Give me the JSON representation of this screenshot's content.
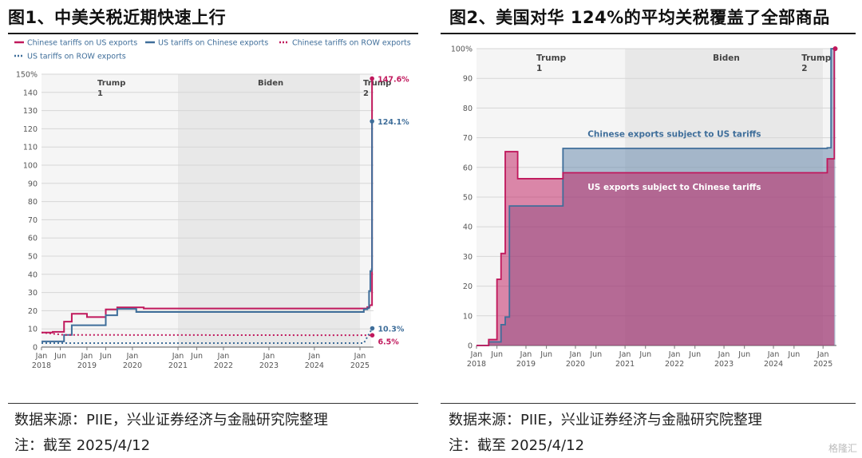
{
  "left": {
    "title": "图1、中美关税近期快速上行",
    "source": "数据来源：PIIE，兴业证券经济与金融研究院整理",
    "note": "注：截至 2025/4/12"
  },
  "right": {
    "title": "图2、美国对华 124%的平均关税覆盖了全部商品",
    "source": "数据来源：PIIE，兴业证券经济与金融研究院整理",
    "note": "注：截至 2025/4/12"
  },
  "watermark": "格隆汇",
  "chart_data": [
    {
      "type": "line",
      "x_unit": "date",
      "ylim": [
        0,
        150
      ],
      "yticks": [
        0,
        10,
        20,
        30,
        40,
        50,
        60,
        70,
        80,
        90,
        100,
        110,
        120,
        130,
        140,
        150
      ],
      "ytick_labels": [
        "0",
        "10",
        "20",
        "30",
        "40",
        "50",
        "60",
        "70",
        "80",
        "90",
        "100",
        "110",
        "120",
        "130",
        "140",
        "150%"
      ],
      "xtick_labels": [
        {
          "date": "2018-01",
          "top": "Jan",
          "bottom": "2018"
        },
        {
          "date": "2018-06",
          "top": "Jun",
          "bottom": ""
        },
        {
          "date": "2019-01",
          "top": "Jan",
          "bottom": "2019"
        },
        {
          "date": "2019-06",
          "top": "Jun",
          "bottom": ""
        },
        {
          "date": "2020-01",
          "top": "Jan",
          "bottom": "2020"
        },
        {
          "date": "2021-01",
          "top": "Jan",
          "bottom": "2021"
        },
        {
          "date": "2021-06",
          "top": "Jun",
          "bottom": ""
        },
        {
          "date": "2022-01",
          "top": "Jan",
          "bottom": "2022"
        },
        {
          "date": "2023-01",
          "top": "Jan",
          "bottom": "2023"
        },
        {
          "date": "2024-01",
          "top": "Jan",
          "bottom": "2024"
        },
        {
          "date": "2025-01",
          "top": "Jan",
          "bottom": "2025"
        }
      ],
      "periods": [
        {
          "label": "Trump\n1",
          "start": "2018-01",
          "end": "2021-01",
          "shade": "#f5f5f5"
        },
        {
          "label": "Biden",
          "start": "2021-01",
          "end": "2025-01",
          "shade": "#e8e8e8"
        },
        {
          "label": "Trump\n2",
          "start": "2025-01",
          "end": "2025-04",
          "shade": "#f5f5f5"
        }
      ],
      "legend": [
        {
          "label": "Chinese tariffs on US exports",
          "color": "#c0185c",
          "style": "solid"
        },
        {
          "label": "US tariffs on Chinese exports",
          "color": "#3f6e9a",
          "style": "solid"
        },
        {
          "label": "Chinese tariffs on ROW exports",
          "color": "#c0185c",
          "style": "dotted"
        },
        {
          "label": "US tariffs on ROW exports",
          "color": "#3f6e9a",
          "style": "dotted"
        }
      ],
      "series": [
        {
          "name": "Chinese tariffs on US exports",
          "color": "#c0185c",
          "style": "step",
          "points": [
            [
              "2018-01",
              8.0
            ],
            [
              "2018-04",
              8.4
            ],
            [
              "2018-07",
              14.0
            ],
            [
              "2018-09",
              18.3
            ],
            [
              "2018-11",
              18.3
            ],
            [
              "2019-01",
              16.5
            ],
            [
              "2019-06",
              20.7
            ],
            [
              "2019-09",
              21.8
            ],
            [
              "2020-02",
              21.8
            ],
            [
              "2020-04",
              21.2
            ],
            [
              "2024-12",
              21.2
            ],
            [
              "2025-02",
              21.2
            ],
            [
              "2025-03",
              22.0
            ],
            [
              "2025-03-20",
              23.0
            ],
            [
              "2025-04-05",
              23.0
            ],
            [
              "2025-04-08",
              147.6
            ]
          ],
          "end_label": "147.6%"
        },
        {
          "name": "US tariffs on Chinese exports",
          "color": "#3f6e9a",
          "style": "step",
          "points": [
            [
              "2018-01",
              3.1
            ],
            [
              "2018-07",
              6.7
            ],
            [
              "2018-09",
              12.0
            ],
            [
              "2019-01",
              12.0
            ],
            [
              "2019-06",
              17.5
            ],
            [
              "2019-09",
              21.0
            ],
            [
              "2020-02",
              19.3
            ],
            [
              "2024-12",
              19.3
            ],
            [
              "2025-02",
              20.8
            ],
            [
              "2025-03",
              21.3
            ],
            [
              "2025-03-15",
              30.8
            ],
            [
              "2025-03-25",
              41.8
            ],
            [
              "2025-04-05",
              42.8
            ],
            [
              "2025-04-08",
              124.1
            ]
          ],
          "end_label": "124.1%"
        },
        {
          "name": "Chinese tariffs on ROW exports",
          "color": "#c0185c",
          "style": "dotted",
          "points": [
            [
              "2018-01",
              8.0
            ],
            [
              "2018-07",
              6.7
            ],
            [
              "2025-04-10",
              6.5
            ]
          ],
          "end_label": "6.5%"
        },
        {
          "name": "US tariffs on ROW exports",
          "color": "#3f6e9a",
          "style": "dotted",
          "points": [
            [
              "2018-01",
              2.2
            ],
            [
              "2025-02",
              2.2
            ],
            [
              "2025-04-10",
              10.3
            ]
          ],
          "end_label": "10.3%"
        }
      ]
    },
    {
      "type": "area",
      "x_unit": "date",
      "ylim": [
        0,
        100
      ],
      "yticks": [
        0,
        10,
        20,
        30,
        40,
        50,
        60,
        70,
        80,
        90,
        100
      ],
      "ytick_labels": [
        "0",
        "10",
        "20",
        "30",
        "40",
        "50",
        "60",
        "70",
        "80",
        "90",
        "100%"
      ],
      "xtick_labels": [
        {
          "date": "2018-01",
          "top": "Jan",
          "bottom": "2018"
        },
        {
          "date": "2018-06",
          "top": "Jun",
          "bottom": ""
        },
        {
          "date": "2019-01",
          "top": "Jan",
          "bottom": "2019"
        },
        {
          "date": "2019-06",
          "top": "Jun",
          "bottom": ""
        },
        {
          "date": "2020-01",
          "top": "Jan",
          "bottom": "2020"
        },
        {
          "date": "2020-06",
          "top": "Jun",
          "bottom": ""
        },
        {
          "date": "2021-01",
          "top": "Jan",
          "bottom": "2021"
        },
        {
          "date": "2021-06",
          "top": "Jun",
          "bottom": ""
        },
        {
          "date": "2022-01",
          "top": "Jan",
          "bottom": "2022"
        },
        {
          "date": "2022-06",
          "top": "Jun",
          "bottom": ""
        },
        {
          "date": "2023-01",
          "top": "Jan",
          "bottom": "2023"
        },
        {
          "date": "2023-06",
          "top": "Jun",
          "bottom": ""
        },
        {
          "date": "2024-01",
          "top": "Jan",
          "bottom": "2024"
        },
        {
          "date": "2024-06",
          "top": "Jun",
          "bottom": ""
        },
        {
          "date": "2025-01",
          "top": "Jan",
          "bottom": "2025"
        }
      ],
      "periods": [
        {
          "label": "Trump\n1",
          "start": "2018-01",
          "end": "2021-01",
          "shade": "#f5f5f5"
        },
        {
          "label": "Biden",
          "start": "2021-01",
          "end": "2025-01",
          "shade": "#e8e8e8"
        },
        {
          "label": "Trump\n2",
          "start": "2025-01",
          "end": "2025-04",
          "shade": "#f5f5f5"
        }
      ],
      "series": [
        {
          "name": "Chinese exports subject to US tariffs",
          "color": "#3f6e9a",
          "fill": "#5f84aa",
          "points": [
            [
              "2018-01",
              0.0
            ],
            [
              "2018-04",
              1.2
            ],
            [
              "2018-07",
              7.0
            ],
            [
              "2018-08",
              9.6
            ],
            [
              "2018-09",
              47.0
            ],
            [
              "2019-09",
              47.0
            ],
            [
              "2019-10",
              66.4
            ],
            [
              "2024-12",
              66.4
            ],
            [
              "2025-02",
              66.6
            ],
            [
              "2025-03",
              100.0
            ],
            [
              "2025-04",
              100.0
            ]
          ]
        },
        {
          "name": "US exports subject to Chinese tariffs",
          "color": "#c0185c",
          "fill": "#c0185c",
          "points": [
            [
              "2018-01",
              0.0
            ],
            [
              "2018-04",
              2.0
            ],
            [
              "2018-06",
              22.3
            ],
            [
              "2018-07",
              31.0
            ],
            [
              "2018-08",
              65.3
            ],
            [
              "2018-11",
              56.2
            ],
            [
              "2019-09",
              56.2
            ],
            [
              "2019-10",
              58.2
            ],
            [
              "2024-12",
              58.2
            ],
            [
              "2025-02",
              62.9
            ],
            [
              "2025-03-25",
              100.0
            ]
          ]
        }
      ]
    }
  ]
}
